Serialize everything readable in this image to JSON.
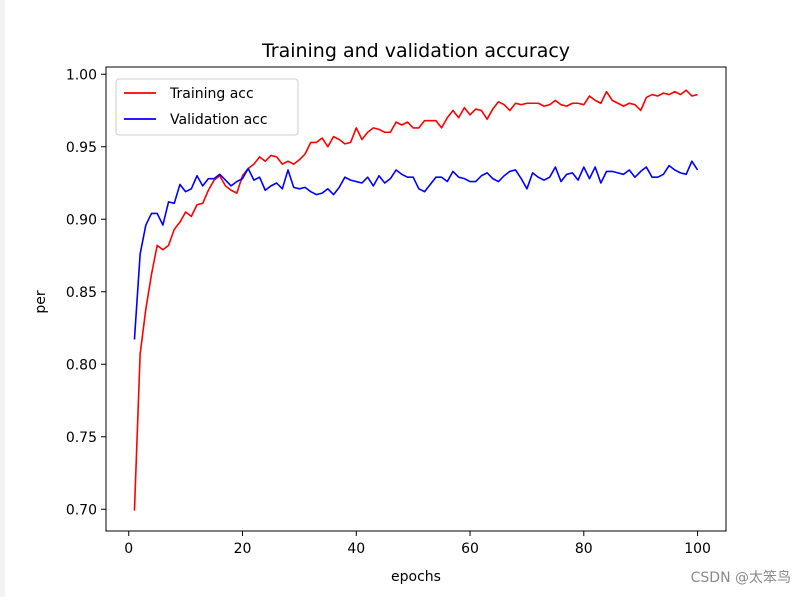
{
  "chart_data": {
    "type": "line",
    "title": "Training and validation accuracy",
    "xlabel": "epochs",
    "ylabel": "per",
    "xlim": [
      -4.0,
      105.0
    ],
    "ylim": [
      0.685,
      1.005
    ],
    "xticks": [
      0,
      20,
      40,
      60,
      80,
      100
    ],
    "yticks": [
      0.7,
      0.75,
      0.8,
      0.85,
      0.9,
      0.95,
      1.0
    ],
    "ytick_labels": [
      "0.70",
      "0.75",
      "0.80",
      "0.85",
      "0.90",
      "0.95",
      "1.00"
    ],
    "grid": false,
    "legend_position": "upper-left",
    "x": [
      1,
      2,
      3,
      4,
      5,
      6,
      7,
      8,
      9,
      10,
      11,
      12,
      13,
      14,
      15,
      16,
      17,
      18,
      19,
      20,
      21,
      22,
      23,
      24,
      25,
      26,
      27,
      28,
      29,
      30,
      31,
      32,
      33,
      34,
      35,
      36,
      37,
      38,
      39,
      40,
      41,
      42,
      43,
      44,
      45,
      46,
      47,
      48,
      49,
      50,
      51,
      52,
      53,
      54,
      55,
      56,
      57,
      58,
      59,
      60,
      61,
      62,
      63,
      64,
      65,
      66,
      67,
      68,
      69,
      70,
      71,
      72,
      73,
      74,
      75,
      76,
      77,
      78,
      79,
      80,
      81,
      82,
      83,
      84,
      85,
      86,
      87,
      88,
      89,
      90,
      91,
      92,
      93,
      94,
      95,
      96,
      97,
      98,
      99,
      100
    ],
    "series": [
      {
        "name": "Training acc",
        "color": "#ff0000",
        "values": [
          0.699,
          0.807,
          0.838,
          0.862,
          0.882,
          0.879,
          0.882,
          0.893,
          0.898,
          0.905,
          0.902,
          0.91,
          0.911,
          0.92,
          0.927,
          0.93,
          0.923,
          0.92,
          0.918,
          0.93,
          0.935,
          0.938,
          0.943,
          0.94,
          0.944,
          0.943,
          0.938,
          0.94,
          0.938,
          0.941,
          0.945,
          0.953,
          0.953,
          0.956,
          0.95,
          0.957,
          0.955,
          0.952,
          0.953,
          0.963,
          0.955,
          0.96,
          0.963,
          0.962,
          0.96,
          0.96,
          0.967,
          0.965,
          0.967,
          0.963,
          0.963,
          0.968,
          0.968,
          0.968,
          0.963,
          0.97,
          0.975,
          0.97,
          0.977,
          0.972,
          0.976,
          0.975,
          0.969,
          0.976,
          0.981,
          0.979,
          0.975,
          0.98,
          0.979,
          0.98,
          0.98,
          0.98,
          0.978,
          0.979,
          0.982,
          0.979,
          0.978,
          0.98,
          0.98,
          0.979,
          0.985,
          0.982,
          0.98,
          0.988,
          0.982,
          0.98,
          0.978,
          0.98,
          0.979,
          0.975,
          0.984,
          0.986,
          0.985,
          0.987,
          0.986,
          0.988,
          0.986,
          0.989,
          0.985,
          0.986
        ]
      },
      {
        "name": "Validation acc",
        "color": "#0000ff",
        "values": [
          0.817,
          0.876,
          0.896,
          0.904,
          0.904,
          0.896,
          0.912,
          0.911,
          0.924,
          0.919,
          0.921,
          0.93,
          0.923,
          0.928,
          0.928,
          0.931,
          0.927,
          0.923,
          0.926,
          0.928,
          0.935,
          0.927,
          0.929,
          0.92,
          0.923,
          0.925,
          0.921,
          0.934,
          0.922,
          0.921,
          0.922,
          0.919,
          0.917,
          0.918,
          0.921,
          0.917,
          0.922,
          0.929,
          0.927,
          0.926,
          0.925,
          0.929,
          0.923,
          0.93,
          0.925,
          0.928,
          0.934,
          0.931,
          0.929,
          0.929,
          0.921,
          0.919,
          0.924,
          0.929,
          0.929,
          0.926,
          0.933,
          0.929,
          0.928,
          0.926,
          0.926,
          0.93,
          0.932,
          0.928,
          0.926,
          0.93,
          0.933,
          0.934,
          0.928,
          0.921,
          0.932,
          0.929,
          0.927,
          0.929,
          0.936,
          0.926,
          0.931,
          0.932,
          0.927,
          0.936,
          0.928,
          0.936,
          0.925,
          0.933,
          0.933,
          0.932,
          0.931,
          0.934,
          0.929,
          0.933,
          0.936,
          0.929,
          0.929,
          0.931,
          0.937,
          0.934,
          0.932,
          0.931,
          0.94,
          0.934
        ]
      }
    ]
  },
  "watermark": "CSDN @太笨鸟"
}
